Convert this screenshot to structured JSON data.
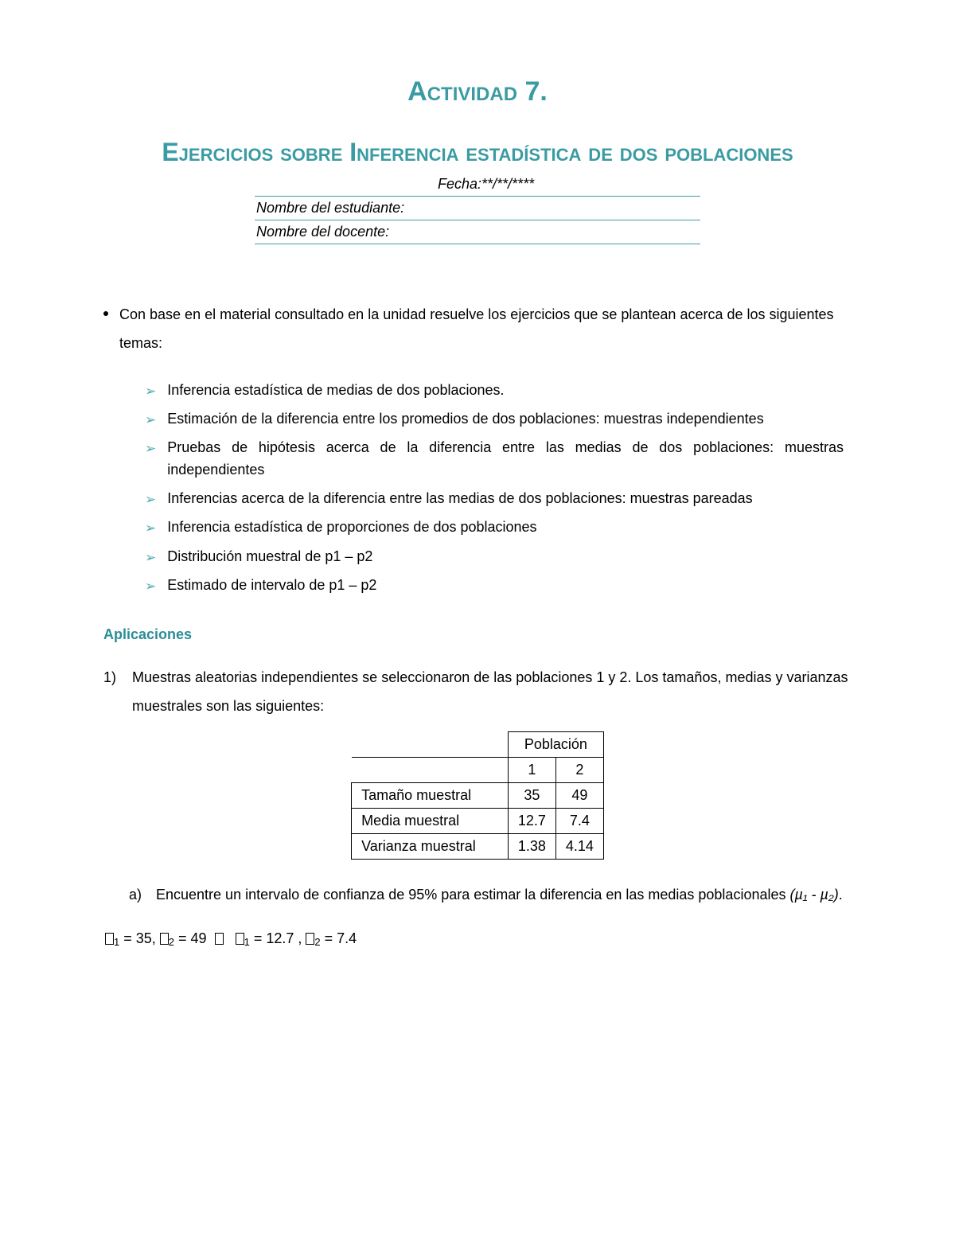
{
  "title1": "Actividad 7.",
  "title2": "Ejercicios sobre Inferencia estadística de dos poblaciones",
  "meta": {
    "fecha_label": "Fecha:",
    "fecha_value": "**/**/****",
    "nombre_estudiante": "Nombre del estudiante:",
    "nombre_docente": "Nombre del docente:"
  },
  "intro": "Con base en el material consultado en la unidad resuelve los ejercicios que se plantean acerca de los siguientes temas:",
  "topics": [
    "Inferencia estadística de medias de dos poblaciones.",
    "Estimación de la diferencia entre los promedios de dos poblaciones: muestras independientes",
    "Pruebas de hipótesis acerca de la diferencia entre las medias de dos poblaciones: muestras independientes",
    "Inferencias acerca de la diferencia entre las medias de dos poblaciones: muestras pareadas",
    "Inferencia estadística de proporciones de dos poblaciones",
    "Distribución muestral de p1 – p2",
    "Estimado de intervalo de p1 – p2"
  ],
  "section_head": "Aplicaciones",
  "q1": {
    "num": "1)",
    "text": "Muestras aleatorias independientes se seleccionaron de las poblaciones 1 y 2. Los tamaños, medias y varianzas muestrales son las siguientes:"
  },
  "table": {
    "header_span": "Población",
    "col1": "1",
    "col2": "2",
    "rows": [
      {
        "label": "Tamaño muestral",
        "v1": "35",
        "v2": "49"
      },
      {
        "label": "Media muestral",
        "v1": "12.7",
        "v2": "7.4"
      },
      {
        "label": "Varianza muestral",
        "v1": "1.38",
        "v2": "4.14"
      }
    ]
  },
  "subq_a": {
    "label": "a)",
    "text_pre": "Encuentre un intervalo de confianza de 95% para estimar la diferencia en las medias poblacionales ",
    "math": "(µ₁ - µ₂)",
    "text_post": "."
  },
  "values": {
    "n1": "35",
    "n2": "49",
    "x1": "12.7",
    "x2": "7.4"
  }
}
